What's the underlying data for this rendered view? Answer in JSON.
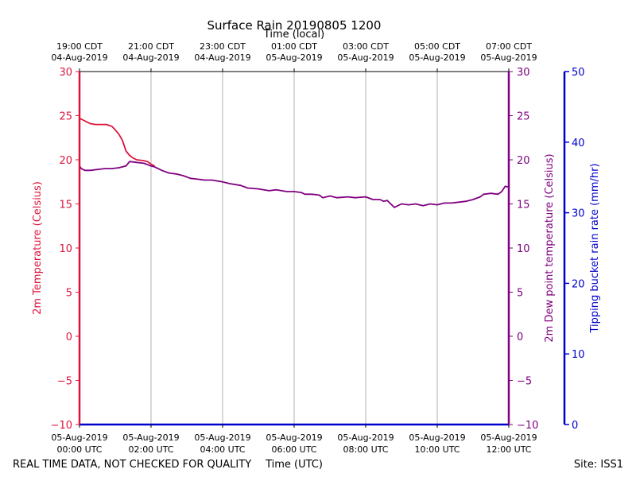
{
  "chart_data": {
    "type": "line",
    "title": "Surface Rain 20190805 1200",
    "xlabel_bottom": "Time (UTC)",
    "xlabel_top": "Time (local)",
    "x_range_hours": [
      0,
      12
    ],
    "ticks_utc": [
      {
        "hour": 0,
        "line1": "05-Aug-2019",
        "line2": "00:00 UTC"
      },
      {
        "hour": 2,
        "line1": "05-Aug-2019",
        "line2": "02:00 UTC"
      },
      {
        "hour": 4,
        "line1": "05-Aug-2019",
        "line2": "04:00 UTC"
      },
      {
        "hour": 6,
        "line1": "05-Aug-2019",
        "line2": "06:00 UTC"
      },
      {
        "hour": 8,
        "line1": "05-Aug-2019",
        "line2": "08:00 UTC"
      },
      {
        "hour": 10,
        "line1": "05-Aug-2019",
        "line2": "10:00 UTC"
      },
      {
        "hour": 12,
        "line1": "05-Aug-2019",
        "line2": "12:00 UTC"
      }
    ],
    "ticks_local": [
      {
        "hour": 0,
        "line1": "19:00 CDT",
        "line2": "04-Aug-2019"
      },
      {
        "hour": 2,
        "line1": "21:00 CDT",
        "line2": "04-Aug-2019"
      },
      {
        "hour": 4,
        "line1": "23:00 CDT",
        "line2": "04-Aug-2019"
      },
      {
        "hour": 6,
        "line1": "01:00 CDT",
        "line2": "05-Aug-2019"
      },
      {
        "hour": 8,
        "line1": "03:00 CDT",
        "line2": "05-Aug-2019"
      },
      {
        "hour": 10,
        "line1": "05:00 CDT",
        "line2": "05-Aug-2019"
      },
      {
        "hour": 12,
        "line1": "07:00 CDT",
        "line2": "05-Aug-2019"
      }
    ],
    "y_left": {
      "label": "2m Temperature (Celsius)",
      "range": [
        -10,
        30
      ],
      "ticks": [
        "−10",
        "−5",
        "0",
        "5",
        "10",
        "15",
        "20",
        "25",
        "30"
      ],
      "color": "#dc143c"
    },
    "y_right1": {
      "label": "2m Dew point temperature (Celsius)",
      "range": [
        -10,
        30
      ],
      "ticks": [
        "−10",
        "−5",
        "0",
        "5",
        "10",
        "15",
        "20",
        "25",
        "30"
      ],
      "color": "#800080"
    },
    "y_right2": {
      "label": "Tipping bucket rain rate (mm/hr)",
      "range": [
        0,
        50
      ],
      "ticks": [
        "0",
        "10",
        "20",
        "30",
        "40",
        "50"
      ],
      "color": "#0000cd"
    },
    "series": [
      {
        "name": "2m Temperature",
        "color": "#dc143c",
        "x": [
          0,
          0.1,
          0.2,
          0.3,
          0.45,
          0.6,
          0.75,
          0.9,
          1.0,
          1.1,
          1.2,
          1.3,
          1.4,
          1.5,
          1.6,
          1.8,
          1.9,
          2.0,
          2.1
        ],
        "y": [
          24.7,
          24.5,
          24.3,
          24.1,
          24.0,
          24.0,
          24.0,
          23.8,
          23.4,
          22.9,
          22.2,
          21.0,
          20.5,
          20.2,
          20.0,
          19.9,
          19.8,
          19.5,
          19.3
        ]
      },
      {
        "name": "2m Dew point temperature",
        "color": "#800080",
        "x": [
          0,
          0.05,
          0.15,
          0.3,
          0.5,
          0.7,
          0.9,
          1.1,
          1.3,
          1.4,
          1.6,
          1.8,
          2.0,
          2.1,
          2.3,
          2.5,
          2.7,
          2.9,
          3.1,
          3.3,
          3.5,
          3.7,
          4.0,
          4.2,
          4.5,
          4.7,
          5.0,
          5.3,
          5.5,
          5.8,
          6.0,
          6.2,
          6.3,
          6.5,
          6.7,
          6.8,
          7.0,
          7.2,
          7.5,
          7.7,
          8.0,
          8.2,
          8.4,
          8.5,
          8.6,
          8.8,
          9.0,
          9.2,
          9.4,
          9.6,
          9.8,
          10.0,
          10.2,
          10.4,
          10.6,
          10.8,
          11.0,
          11.2,
          11.3,
          11.5,
          11.7,
          11.8,
          11.9,
          12.0
        ],
        "y": [
          19.3,
          19.0,
          18.8,
          18.8,
          18.9,
          19.0,
          19.0,
          19.1,
          19.3,
          19.8,
          19.7,
          19.6,
          19.3,
          19.2,
          18.8,
          18.5,
          18.4,
          18.2,
          17.9,
          17.8,
          17.7,
          17.7,
          17.5,
          17.3,
          17.1,
          16.8,
          16.7,
          16.5,
          16.6,
          16.4,
          16.4,
          16.3,
          16.1,
          16.1,
          16.0,
          15.7,
          15.9,
          15.7,
          15.8,
          15.7,
          15.8,
          15.5,
          15.5,
          15.3,
          15.4,
          14.6,
          15.0,
          14.9,
          15.0,
          14.8,
          15.0,
          14.9,
          15.1,
          15.1,
          15.2,
          15.3,
          15.5,
          15.8,
          16.1,
          16.2,
          16.1,
          16.4,
          17.0,
          16.9
        ]
      },
      {
        "name": "Tipping bucket rain rate",
        "color": "#0000cd",
        "x": [
          0,
          12
        ],
        "y": [
          0,
          0
        ]
      }
    ]
  },
  "footer": {
    "disclaimer": "REAL TIME DATA, NOT CHECKED FOR QUALITY",
    "site": "Site: ISS1"
  }
}
